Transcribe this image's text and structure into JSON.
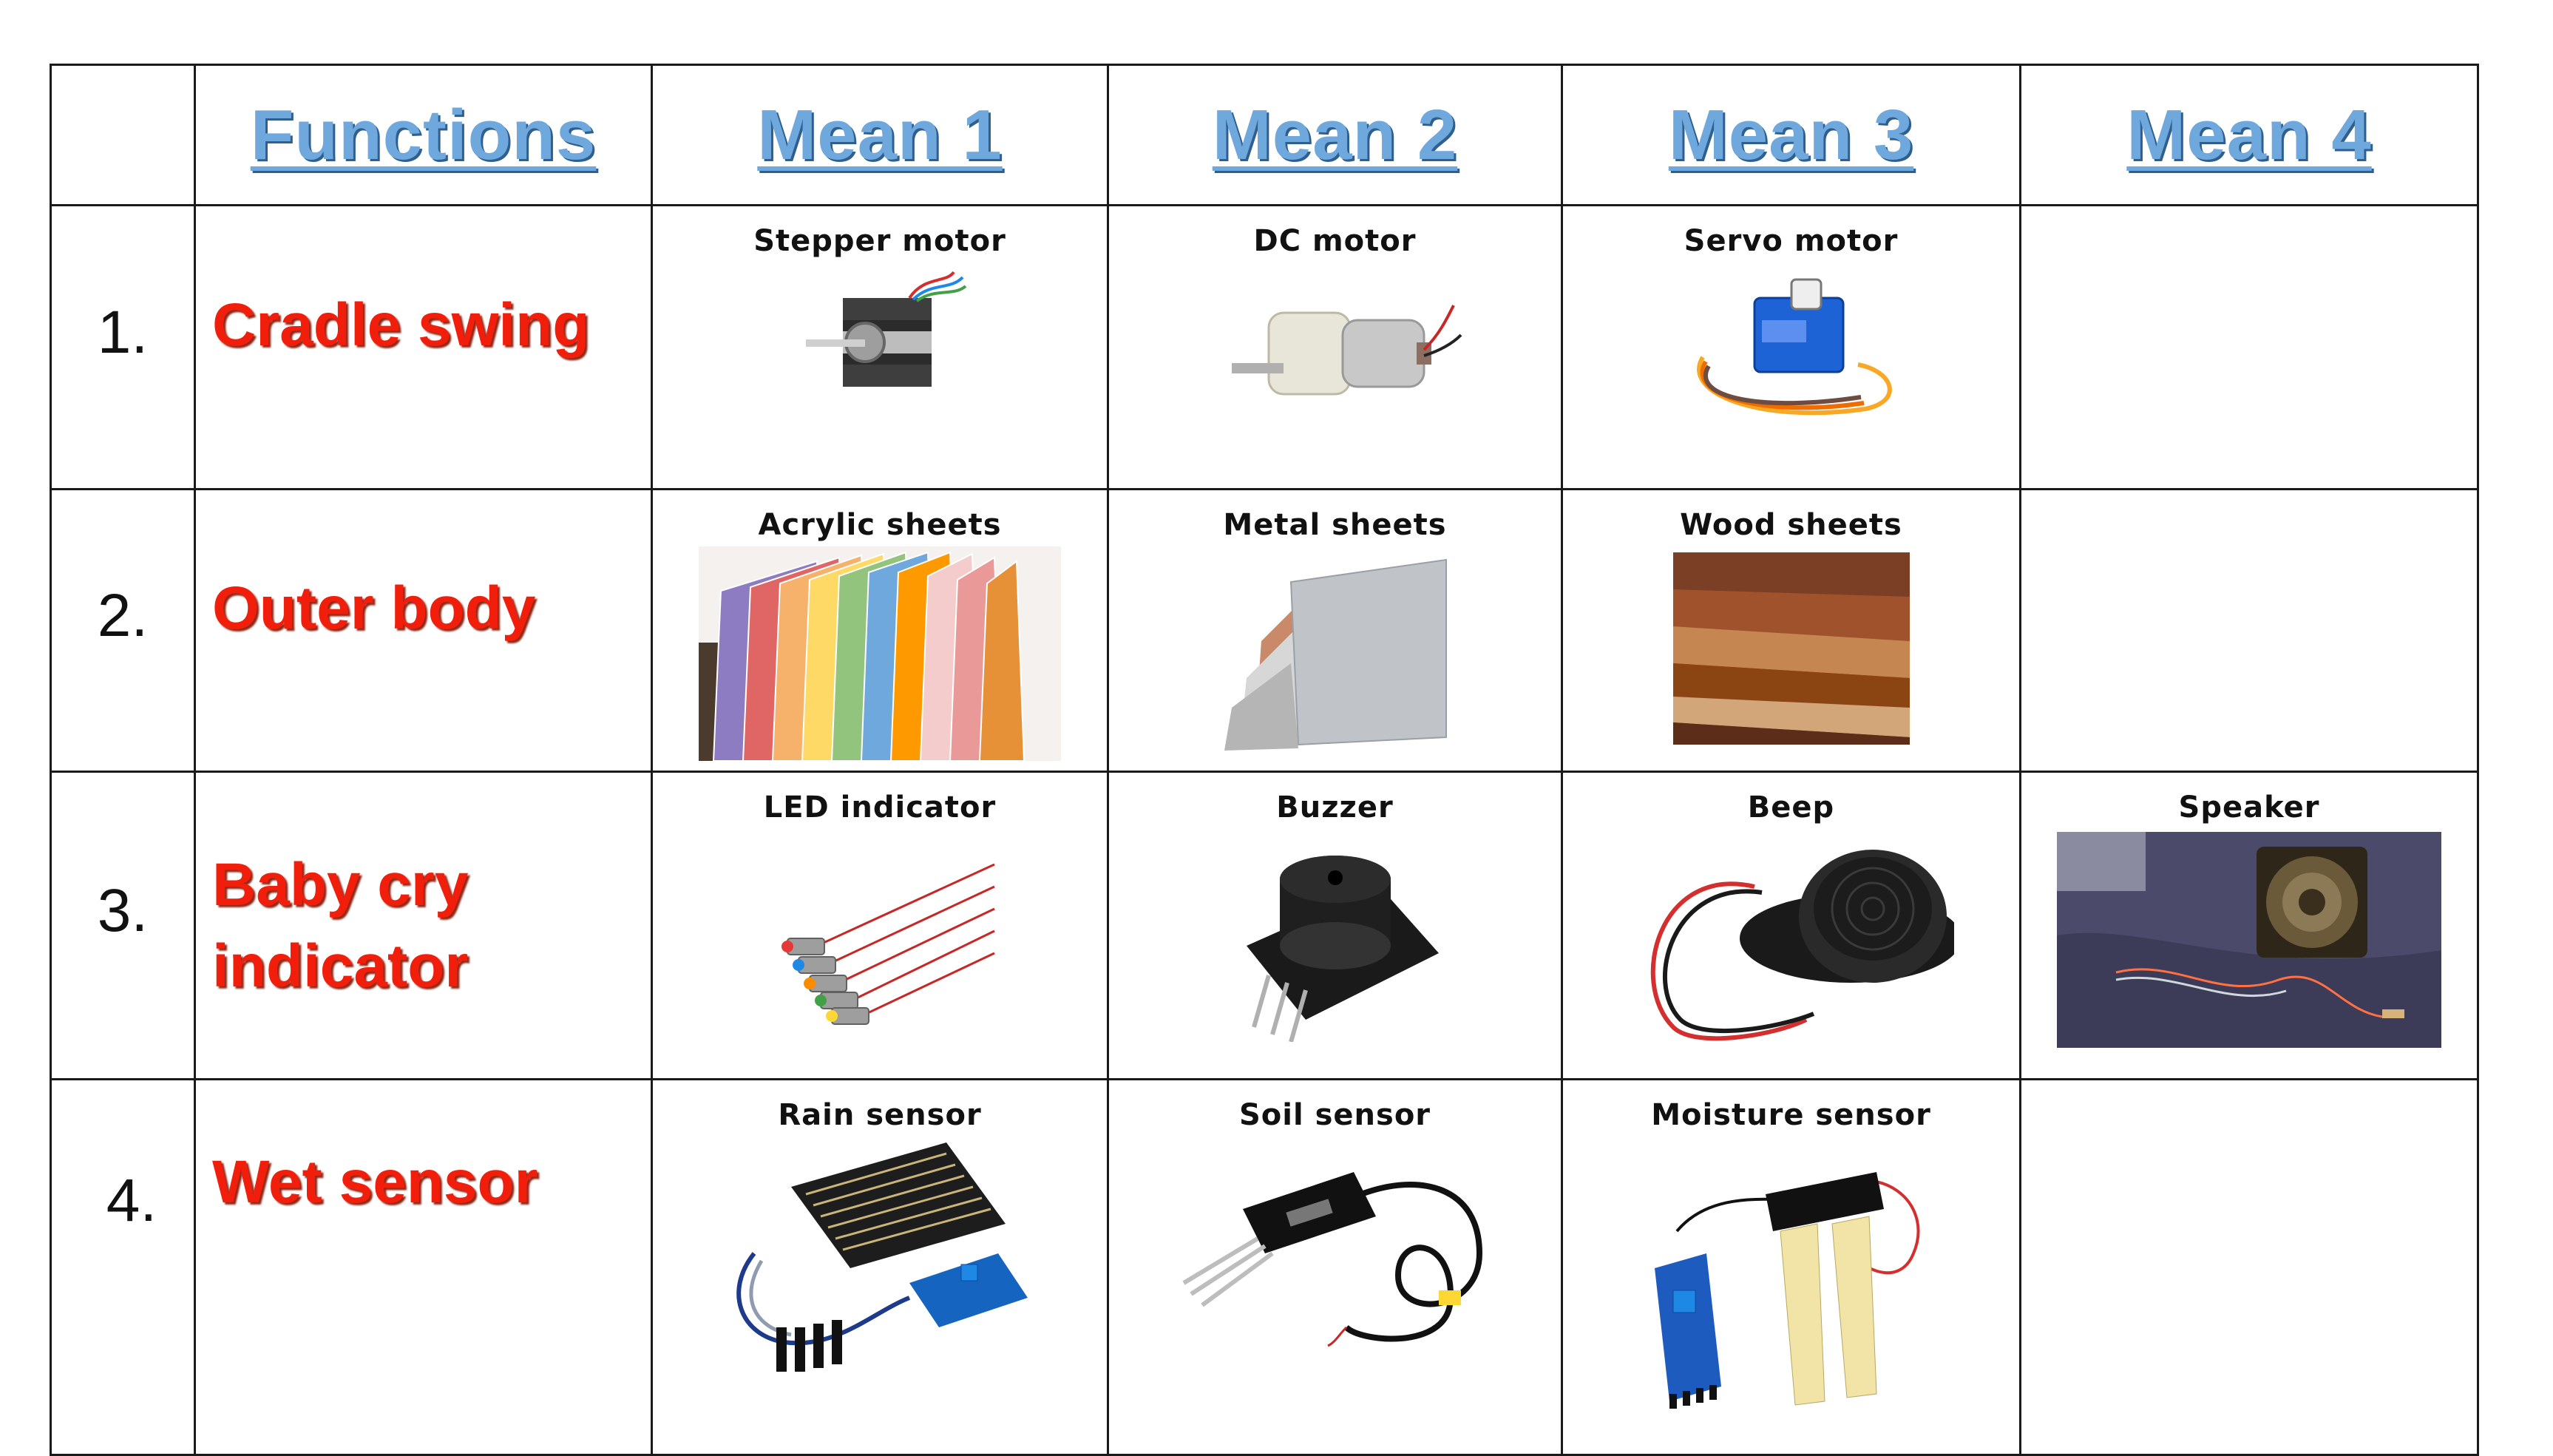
{
  "header": {
    "functions": "Functions",
    "means": [
      "Mean 1",
      "Mean 2",
      "Mean 3",
      "Mean 4"
    ]
  },
  "rows": [
    {
      "number": "1.",
      "function_lines": [
        "Cradle swing"
      ],
      "means": [
        "Stepper motor",
        "DC motor",
        "Servo motor",
        ""
      ]
    },
    {
      "number": "2.",
      "function_lines": [
        "Outer body"
      ],
      "means": [
        "Acrylic sheets",
        "Metal sheets",
        "Wood sheets",
        ""
      ]
    },
    {
      "number": "3.",
      "function_lines": [
        "Baby cry",
        "indicator"
      ],
      "means": [
        "LED indicator",
        "Buzzer",
        "Beep",
        "Speaker"
      ]
    },
    {
      "number": "4.",
      "function_lines": [
        "Wet sensor"
      ],
      "means": [
        "Rain sensor",
        "Soil sensor",
        "Moisture sensor",
        ""
      ]
    }
  ],
  "colors": {
    "header_text": "#6fa8dc",
    "function_text": "#f11e0b",
    "grid": "#1a1a1a"
  },
  "images": {
    "r1m1": "stepper-motor-photo",
    "r1m2": "dc-motor-photo",
    "r1m3": "servo-motor-photo",
    "r2m1": "acrylic-sheets-photo",
    "r2m2": "metal-sheets-photo",
    "r2m3": "wood-sheets-photo",
    "r3m1": "led-indicator-photo",
    "r3m2": "buzzer-photo",
    "r3m3": "beep-photo",
    "r3m4": "speaker-photo",
    "r4m1": "rain-sensor-photo",
    "r4m2": "soil-sensor-photo",
    "r4m3": "moisture-sensor-photo"
  }
}
